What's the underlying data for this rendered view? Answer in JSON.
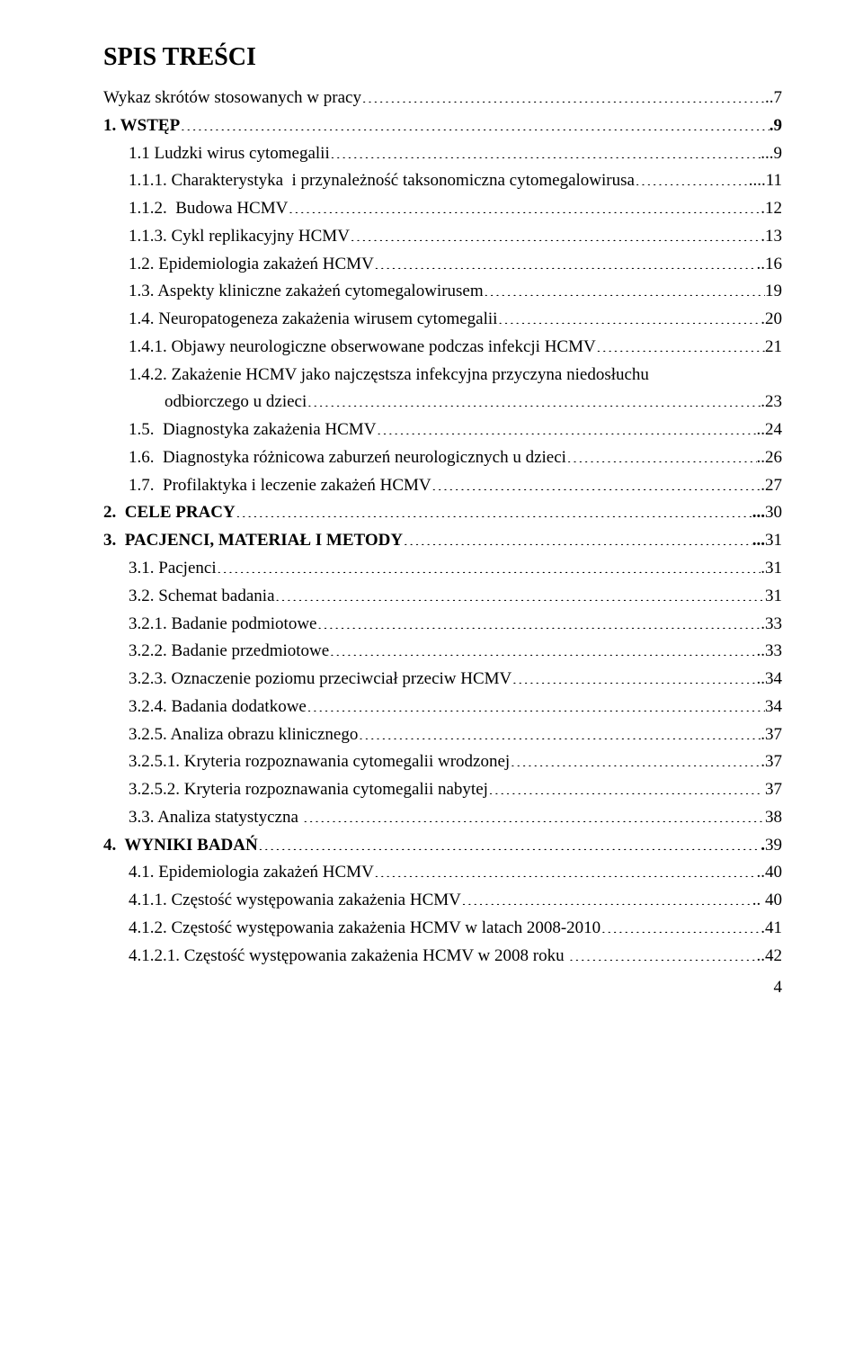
{
  "title": "SPIS TREŚCI",
  "page_number": "4",
  "entries": [
    {
      "label": "Wykaz skrótów stosowanych w pracy",
      "page": "..7",
      "indent": 0,
      "bold": false
    },
    {
      "bold_prefix": "1. WSTĘP",
      "label": "",
      "page": ".9",
      "indent": 0,
      "bold": true
    },
    {
      "label": "1.1 Ludzki wirus cytomegalii",
      "page": "...9",
      "indent": 1,
      "bold": false
    },
    {
      "label": "1.1.1. Charakterystyka  i przynależność taksonomiczna cytomegalowirusa",
      "page": "....11",
      "indent": 1,
      "bold": false
    },
    {
      "label": "1.1.2.  Budowa HCMV",
      "page": ".12",
      "indent": 1,
      "bold": false
    },
    {
      "label": "1.1.3. Cykl replikacyjny HCMV",
      "page": ".13",
      "indent": 1,
      "bold": false
    },
    {
      "label": "1.2. Epidemiologia zakażeń HCMV",
      "page": "..16",
      "indent": 1,
      "bold": false
    },
    {
      "label": "1.3. Aspekty kliniczne zakażeń cytomegalowirusem",
      "page": "19",
      "indent": 1,
      "bold": false
    },
    {
      "label": "1.4. Neuropatogeneza zakażenia wirusem cytomegalii",
      "page": ".20",
      "indent": 1,
      "bold": false
    },
    {
      "label": "1.4.1. Objawy neurologiczne obserwowane podczas infekcji HCMV",
      "page": "21",
      "indent": 1,
      "bold": false
    },
    {
      "label": "1.4.2. Zakażenie HCMV jako najczęstsza infekcyjna przyczyna niedosłuchu",
      "wrap": "odbiorczego u dzieci",
      "page": ".23",
      "indent": 1,
      "wrap_indent": 2,
      "bold": false
    },
    {
      "label": "1.5.  Diagnostyka zakażenia HCMV",
      "page": "..24",
      "indent": 1,
      "bold": false
    },
    {
      "label": "1.6.  Diagnostyka różnicowa zaburzeń neurologicznych u dzieci",
      "page": "..26",
      "indent": 1,
      "bold": false
    },
    {
      "label": "1.7.  Profilaktyka i leczenie zakażeń HCMV",
      "page": ".27",
      "indent": 1,
      "bold": false
    },
    {
      "bold_prefix": "2.  CELE PRACY",
      "label": "",
      "page": "...",
      "page_suffix": "30",
      "indent": 0,
      "bold": true
    },
    {
      "bold_prefix": "3.  PACJENCI, MATERIAŁ I METODY",
      "label": "",
      "page": "...",
      "page_suffix": "31",
      "indent": 0,
      "bold": true
    },
    {
      "label": "3.1. Pacjenci",
      "page": ".31",
      "indent": 1,
      "bold": false
    },
    {
      "label": "3.2. Schemat badania",
      "page": "31",
      "indent": 1,
      "bold": false
    },
    {
      "label": "3.2.1. Badanie podmiotowe",
      "page": ".33",
      "indent": 1,
      "bold": false
    },
    {
      "label": "3.2.2. Badanie przedmiotowe",
      "page": "..33",
      "indent": 1,
      "bold": false
    },
    {
      "label": "3.2.3. Oznaczenie poziomu przeciwciał przeciw HCMV",
      "page": "..34",
      "indent": 1,
      "bold": false
    },
    {
      "label": "3.2.4. Badania dodatkowe",
      "page": "34",
      "indent": 1,
      "bold": false
    },
    {
      "label": "3.2.5. Analiza obrazu klinicznego",
      "page": ".37",
      "indent": 1,
      "bold": false
    },
    {
      "label": "3.2.5.1. Kryteria rozpoznawania cytomegalii wrodzonej",
      "page": ".37",
      "indent": 1,
      "bold": false
    },
    {
      "label": "3.2.5.2. Kryteria rozpoznawania cytomegalii nabytej",
      "page": " 37",
      "indent": 1,
      "bold": false
    },
    {
      "label": "3.3. Analiza statystyczna ",
      "page": "38",
      "indent": 1,
      "bold": false
    },
    {
      "bold_prefix": "4.  WYNIKI BADAŃ",
      "label": "",
      "page": ".",
      "page_suffix": "39",
      "indent": 0,
      "bold": true
    },
    {
      "label": "4.1. Epidemiologia zakażeń HCMV",
      "page": "..40",
      "indent": 1,
      "bold": false
    },
    {
      "label": "4.1.1. Częstość występowania zakażenia HCMV",
      "page": ".. 40",
      "indent": 1,
      "bold": false
    },
    {
      "label": "4.1.2. Częstość występowania zakażenia HCMV w latach 2008-2010",
      "page": ".41",
      "indent": 1,
      "bold": false
    },
    {
      "label": "4.1.2.1. Częstość występowania zakażenia HCMV w 2008 roku ",
      "page": "..42",
      "indent": 1,
      "bold": false
    }
  ]
}
